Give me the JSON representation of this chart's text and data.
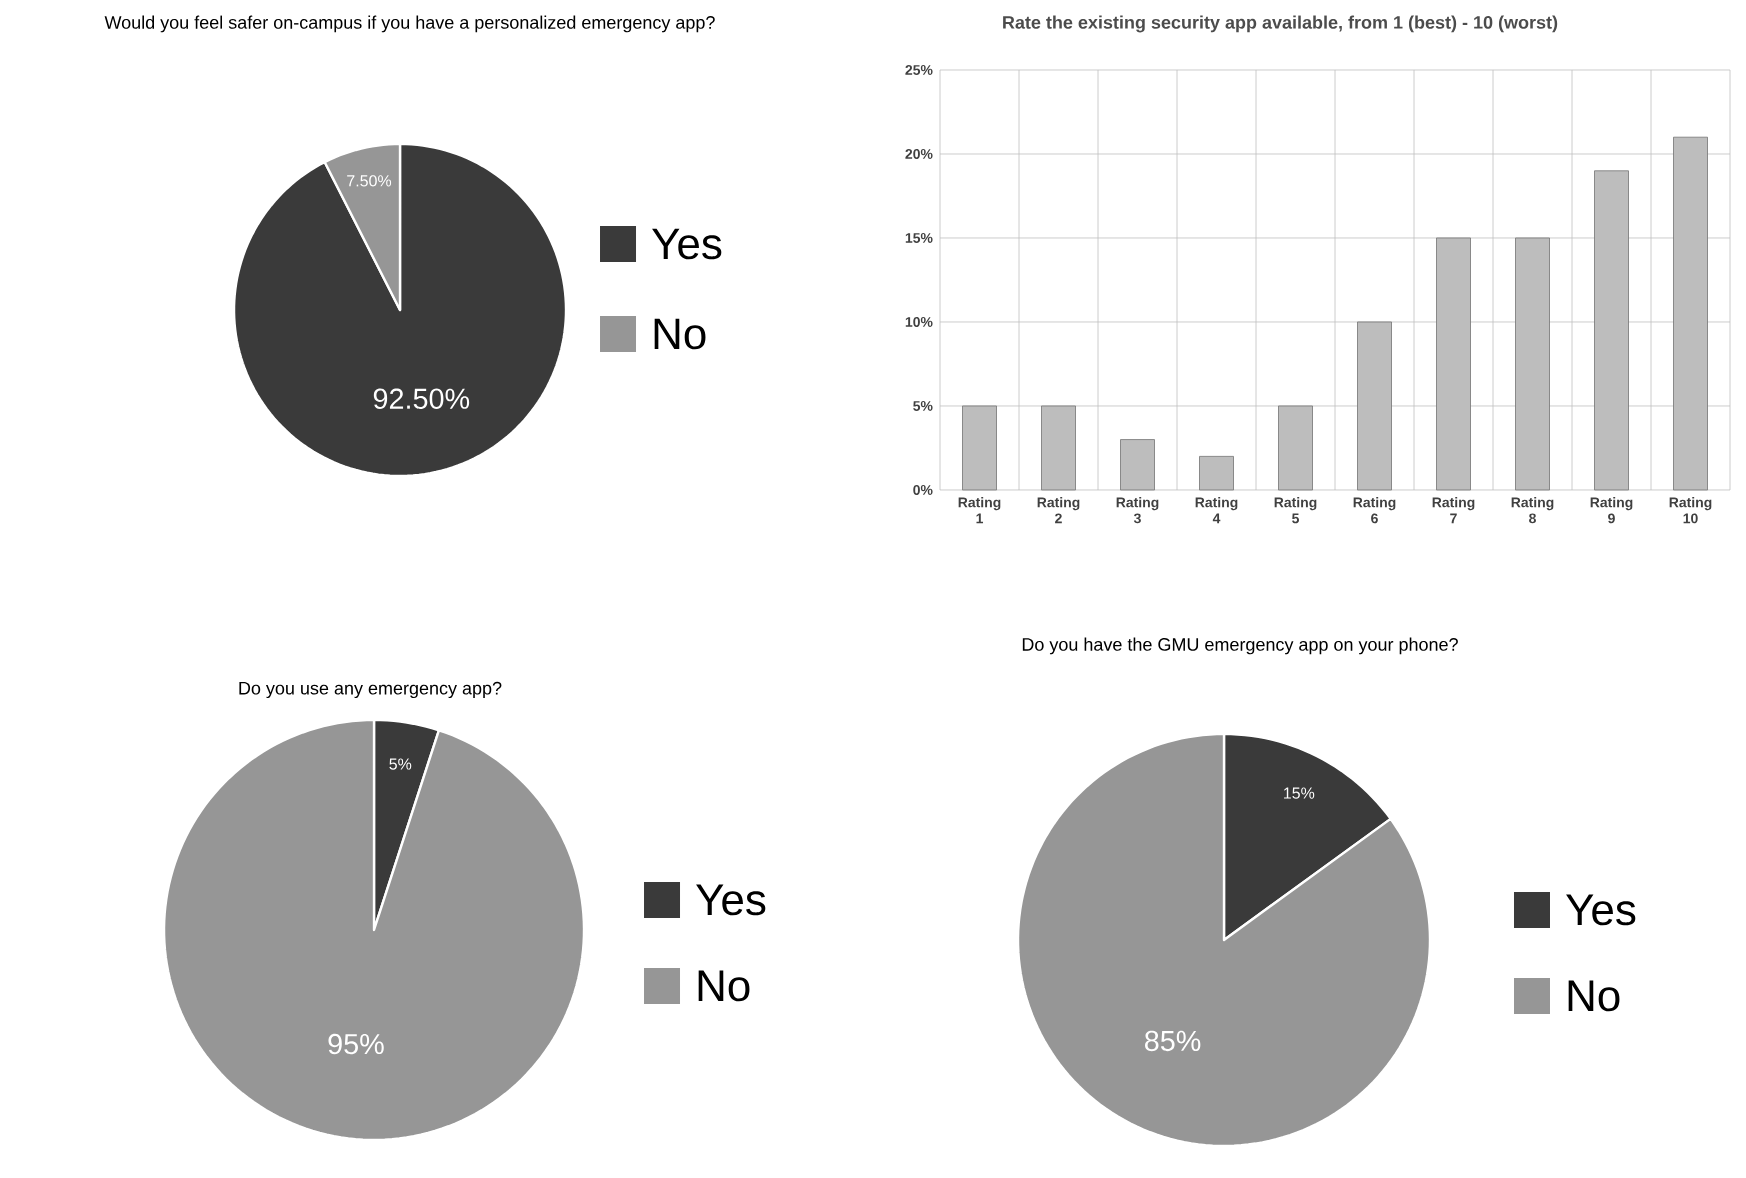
{
  "chart_data": [
    {
      "type": "pie",
      "title": "Would you feel safer on-campus if you have a personalized emergency app?",
      "categories": [
        "Yes",
        "No"
      ],
      "values": [
        92.5,
        7.5
      ],
      "colors": [
        "#3a3a3a",
        "#969696"
      ],
      "value_labels": [
        "92.50%",
        "7.50%"
      ],
      "legend": "right"
    },
    {
      "type": "bar",
      "title": "Rate the existing security app available, from 1 (best) - 10 (worst)",
      "categories": [
        "Rating 1",
        "Rating 2",
        "Rating 3",
        "Rating 4",
        "Rating 5",
        "Rating 6",
        "Rating 7",
        "Rating 8",
        "Rating 9",
        "Rating 10"
      ],
      "values": [
        5,
        5,
        3,
        2,
        5,
        10,
        15,
        15,
        19,
        21
      ],
      "color": "#bdbdbd",
      "ylim": [
        0,
        25
      ],
      "yticks": [
        {
          "value": 0,
          "label": "0%"
        },
        {
          "value": 5,
          "label": "5%"
        },
        {
          "value": 10,
          "label": "10%"
        },
        {
          "value": 15,
          "label": "15%"
        },
        {
          "value": 20,
          "label": "20%"
        },
        {
          "value": 25,
          "label": "25%"
        }
      ],
      "grid": true
    },
    {
      "type": "pie",
      "title": "Do you use any emergency app?",
      "categories": [
        "Yes",
        "No"
      ],
      "values": [
        5,
        95
      ],
      "colors": [
        "#3a3a3a",
        "#969696"
      ],
      "value_labels": [
        "5%",
        "95%"
      ],
      "legend": "right"
    },
    {
      "type": "pie",
      "title": "Do you have the GMU emergency app on your phone?",
      "categories": [
        "Yes",
        "No"
      ],
      "values": [
        15,
        85
      ],
      "colors": [
        "#3a3a3a",
        "#969696"
      ],
      "value_labels": [
        "15%",
        "85%"
      ],
      "legend": "right"
    }
  ]
}
